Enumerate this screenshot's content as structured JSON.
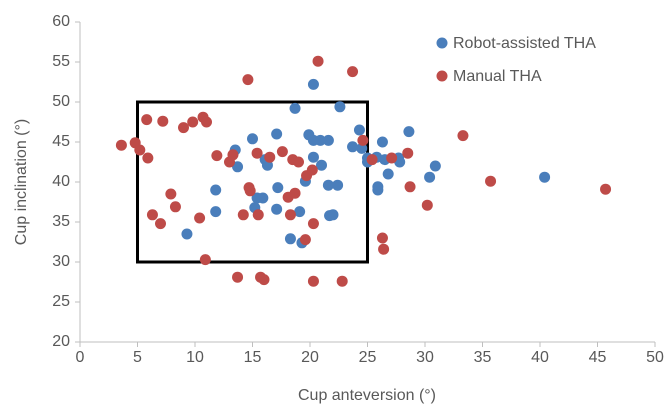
{
  "chart_data": {
    "type": "scatter",
    "xlabel": "Cup anteversion (°)",
    "ylabel": "Cup inclination (°)",
    "xlim": [
      0,
      50
    ],
    "xticks": [
      0,
      5,
      10,
      15,
      20,
      25,
      30,
      35,
      40,
      45,
      50
    ],
    "ylim": [
      20,
      60
    ],
    "yticks": [
      20,
      25,
      30,
      35,
      40,
      45,
      50,
      55,
      60
    ],
    "legend": "upper right",
    "rectangle": {
      "x": [
        5,
        25
      ],
      "y": [
        30,
        50
      ],
      "color": "#000000"
    },
    "series": [
      {
        "name": "Robot-assisted THA",
        "color": "#4a7ebb",
        "x": [
          9.3,
          11.8,
          11.8,
          13.5,
          13.7,
          15.0,
          15.2,
          15.4,
          15.9,
          16.1,
          16.3,
          17.1,
          17.2,
          17.1,
          18.3,
          18.7,
          19.1,
          19.3,
          19.6,
          19.9,
          20.3,
          20.3,
          20.3,
          20.9,
          21.0,
          21.6,
          21.6,
          21.7,
          22.0,
          22.4,
          22.6,
          23.7,
          24.3,
          24.5,
          25.0,
          25.0,
          25.8,
          25.9,
          25.9,
          26.3,
          26.5,
          26.8,
          27.7,
          27.8,
          28.6,
          30.4,
          30.9,
          40.4
        ],
        "values": [
          33.5,
          39.0,
          36.3,
          44.0,
          41.9,
          45.4,
          36.8,
          38.0,
          38.0,
          42.8,
          42.1,
          46.0,
          39.3,
          36.6,
          32.9,
          49.2,
          36.3,
          32.4,
          40.1,
          45.9,
          45.2,
          43.1,
          52.2,
          45.2,
          42.1,
          45.2,
          39.6,
          35.8,
          35.9,
          39.6,
          49.4,
          44.4,
          46.5,
          44.2,
          42.5,
          43.0,
          43.1,
          39.4,
          39.0,
          45.0,
          42.8,
          41.0,
          43.0,
          42.5,
          46.3,
          40.6,
          42.0,
          40.6
        ]
      },
      {
        "name": "Manual THA",
        "color": "#be4b48",
        "x": [
          3.6,
          4.8,
          5.2,
          5.8,
          5.9,
          6.3,
          7.0,
          7.2,
          7.9,
          8.3,
          9.0,
          9.8,
          10.4,
          10.7,
          10.9,
          11.0,
          11.9,
          13.0,
          13.3,
          13.7,
          14.2,
          14.6,
          14.7,
          14.8,
          15.4,
          15.5,
          15.7,
          16.0,
          16.5,
          17.6,
          18.1,
          18.3,
          18.5,
          18.7,
          19.0,
          19.6,
          19.7,
          20.2,
          20.3,
          20.3,
          20.7,
          22.8,
          23.7,
          24.6,
          25.4,
          26.3,
          26.4,
          27.1,
          28.5,
          28.7,
          30.2,
          33.3,
          35.7,
          45.7
        ],
        "values": [
          44.6,
          44.9,
          44.0,
          47.8,
          43.0,
          35.9,
          34.8,
          47.6,
          38.5,
          36.9,
          46.8,
          47.5,
          35.5,
          48.1,
          30.3,
          47.5,
          43.3,
          42.5,
          43.4,
          28.1,
          35.9,
          52.8,
          39.3,
          38.9,
          43.6,
          35.9,
          28.1,
          27.8,
          43.1,
          43.8,
          38.1,
          35.9,
          42.8,
          38.6,
          42.5,
          32.8,
          40.8,
          41.5,
          34.8,
          27.6,
          55.1,
          27.6,
          53.8,
          45.2,
          42.8,
          33.0,
          31.6,
          43.0,
          43.6,
          39.4,
          37.1,
          45.8,
          40.1,
          39.1
        ]
      }
    ]
  }
}
